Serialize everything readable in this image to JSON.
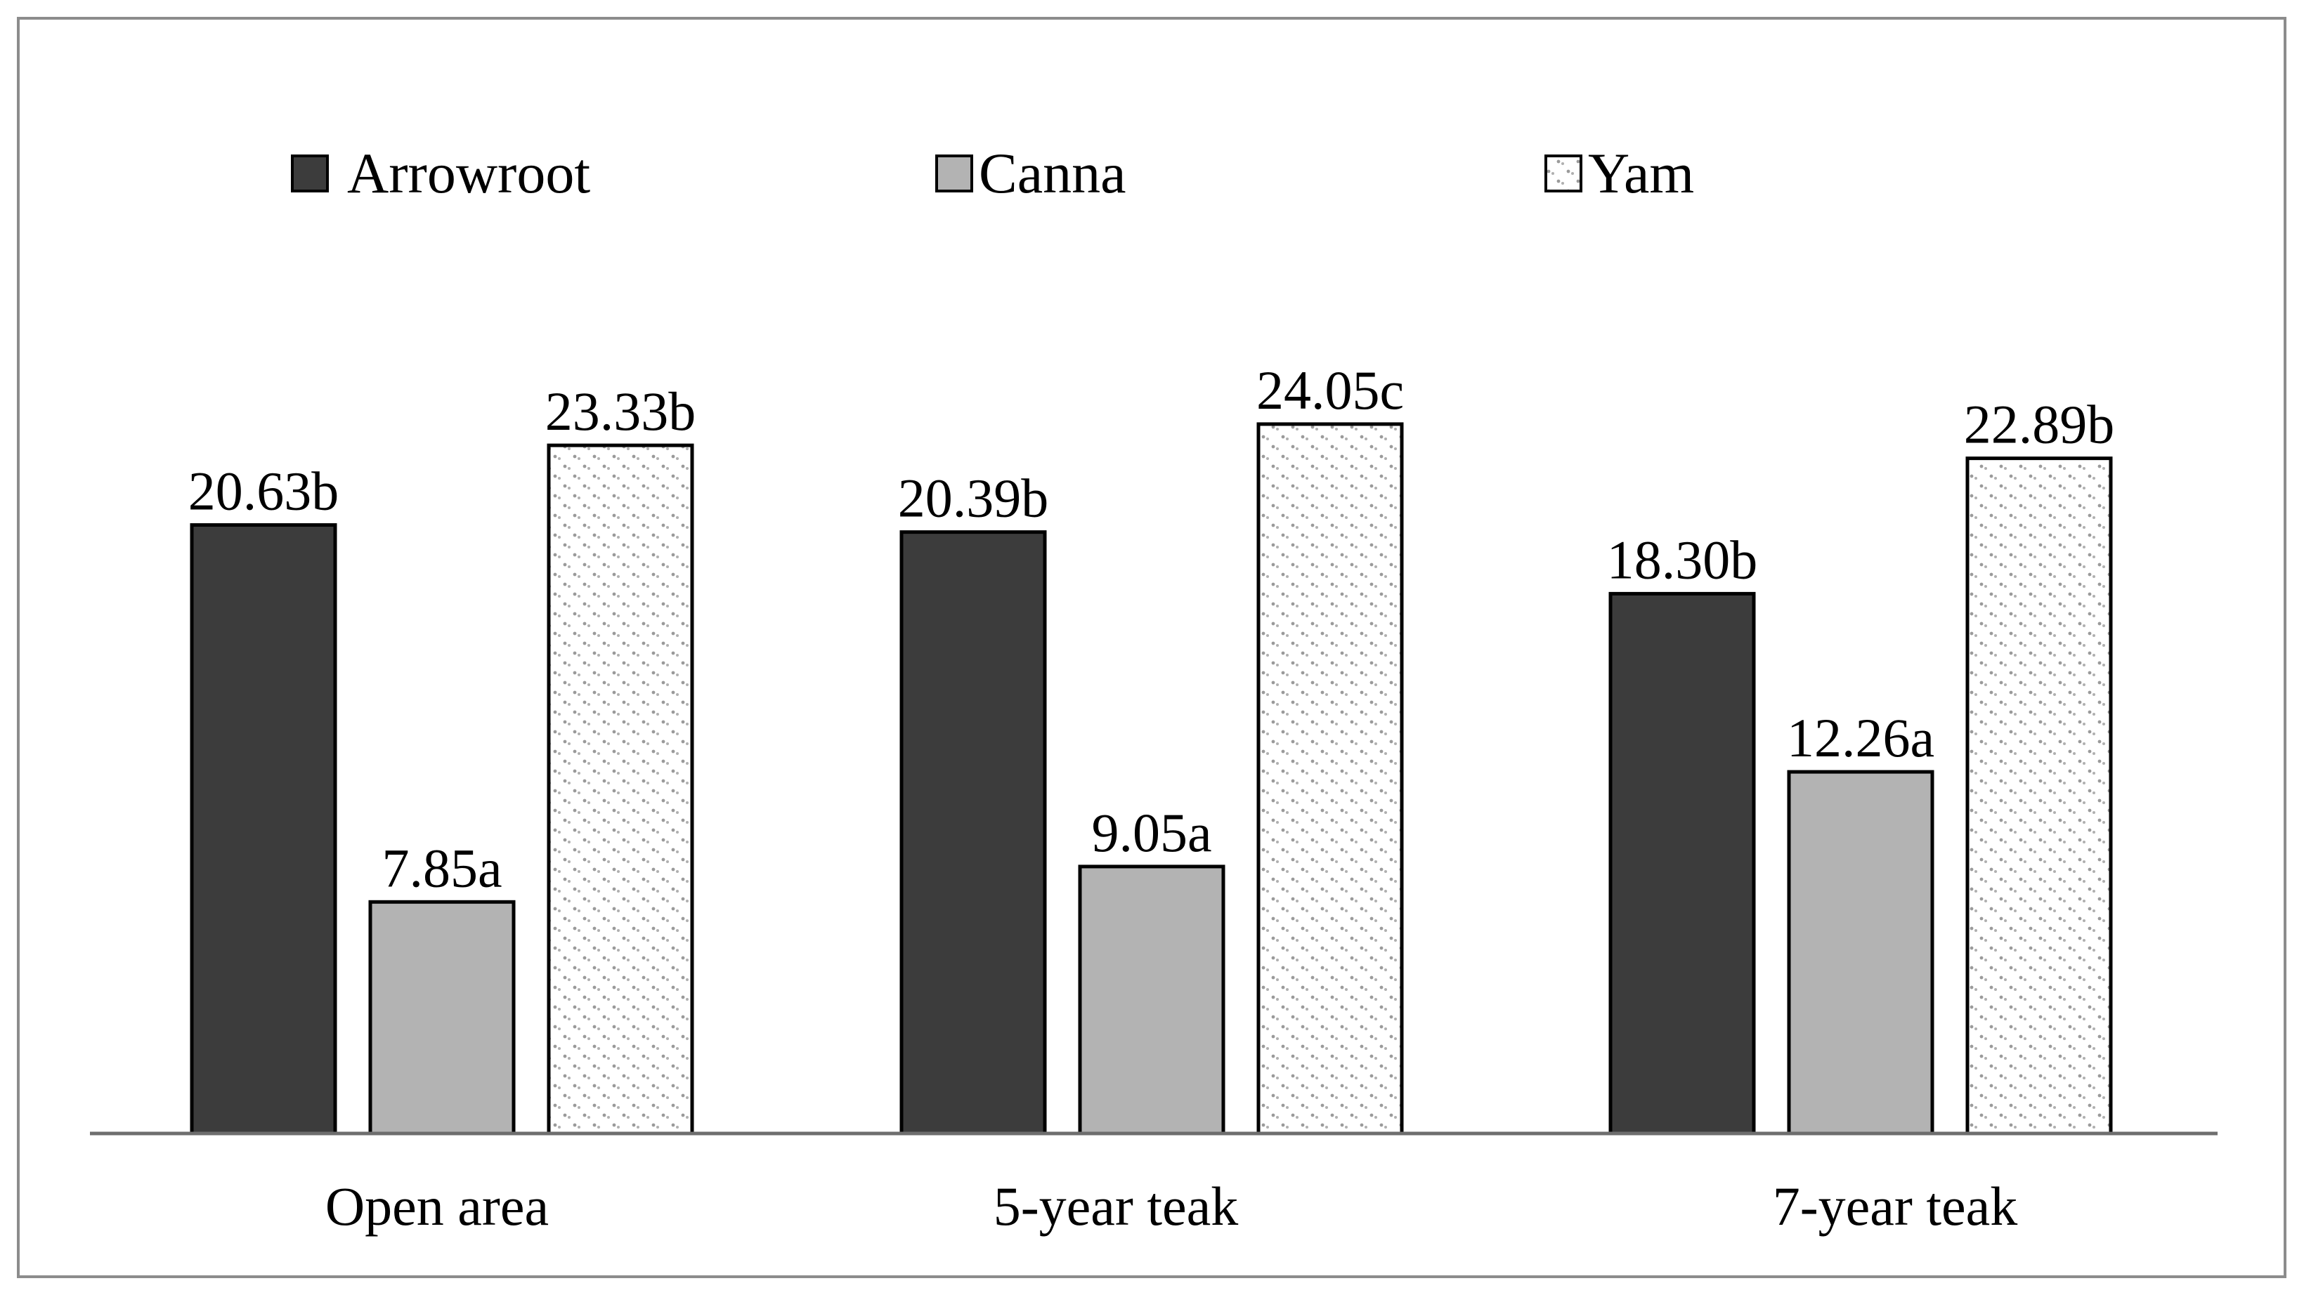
{
  "chart_data": {
    "type": "bar",
    "title": "",
    "xlabel": "",
    "ylabel": "",
    "ylim": [
      0,
      26
    ],
    "grid": false,
    "legend_position": "top",
    "categories": [
      "Open area",
      "5-year teak",
      "7-year teak"
    ],
    "series": [
      {
        "name": "Arrowroot",
        "color": "#3c3c3c",
        "pattern": "solid",
        "values": [
          20.63,
          20.39,
          18.3
        ],
        "labels": [
          "20.63b",
          "20.39b",
          "18.30b"
        ]
      },
      {
        "name": "Canna",
        "color": "#b3b3b3",
        "pattern": "solid",
        "values": [
          7.85,
          9.05,
          12.26
        ],
        "labels": [
          "7.85a",
          "9.05a",
          "12.26a"
        ]
      },
      {
        "name": "Yam",
        "color": "#ffffff",
        "pattern": "dotted",
        "values": [
          23.33,
          24.05,
          22.89
        ],
        "labels": [
          "23.33b",
          "24.05c",
          "22.89b"
        ]
      }
    ]
  }
}
